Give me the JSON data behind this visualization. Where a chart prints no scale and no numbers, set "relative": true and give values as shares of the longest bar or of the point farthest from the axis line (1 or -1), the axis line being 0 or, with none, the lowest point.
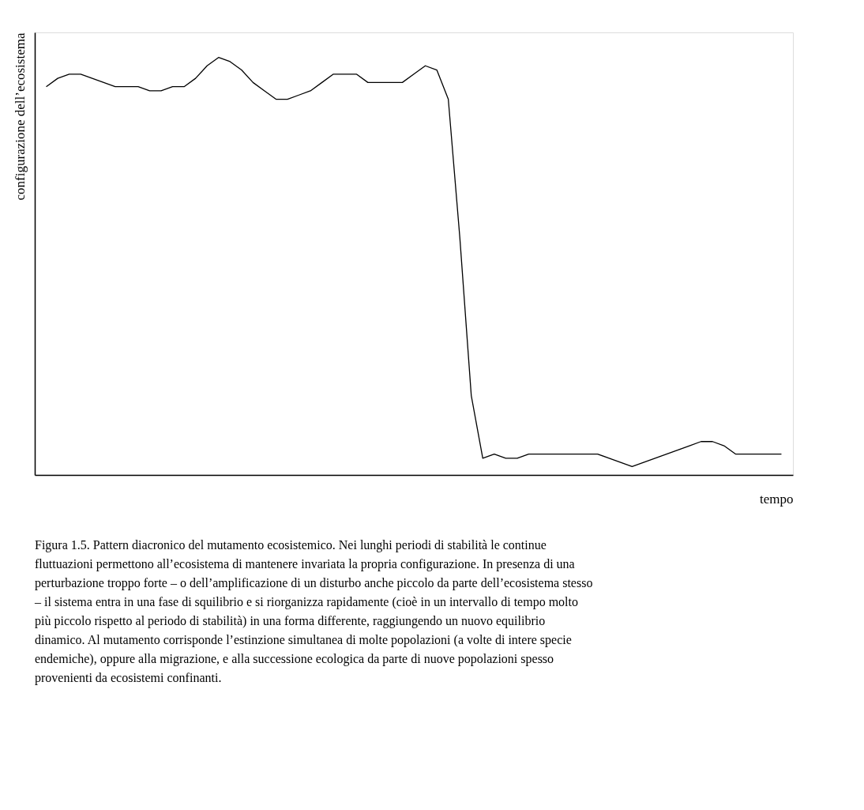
{
  "chart_data": {
    "type": "line",
    "relative": true,
    "xlabel": "tempo",
    "ylabel": "configurazione dell’ecosistema",
    "color": "#000000",
    "grid": false,
    "marker": "none",
    "line_style": "solid",
    "categories": [
      null,
      null,
      null,
      null,
      null,
      null,
      null,
      null,
      null,
      null,
      null,
      null,
      null,
      null,
      null,
      null,
      null,
      null,
      null,
      null,
      null,
      null,
      null,
      null,
      null,
      null,
      null,
      null,
      null,
      null,
      null,
      null,
      null,
      null,
      null,
      null,
      null,
      null,
      null,
      null,
      null,
      null,
      null,
      null,
      null,
      null,
      null,
      null,
      null,
      null,
      null,
      null,
      null,
      null,
      null,
      null,
      null,
      null,
      null,
      null,
      null,
      null,
      null,
      null,
      null
    ],
    "values": [
      0.93,
      0.95,
      0.96,
      0.96,
      0.95,
      0.94,
      0.93,
      0.93,
      0.93,
      0.92,
      0.92,
      0.93,
      0.93,
      0.95,
      0.98,
      1.0,
      0.99,
      0.97,
      0.94,
      0.92,
      0.9,
      0.9,
      0.91,
      0.92,
      0.94,
      0.96,
      0.96,
      0.96,
      0.94,
      0.94,
      0.94,
      0.94,
      0.96,
      0.98,
      0.97,
      0.9,
      0.57,
      0.19,
      0.04,
      0.05,
      0.04,
      0.04,
      0.05,
      0.05,
      0.05,
      0.05,
      0.05,
      0.05,
      0.05,
      0.04,
      0.03,
      0.02,
      0.03,
      0.04,
      0.05,
      0.06,
      0.07,
      0.08,
      0.08,
      0.07,
      0.05,
      0.05,
      0.05,
      0.05,
      0.05
    ],
    "annotations": [
      "Figura 1.5. Pattern diacronico del mutamento ecosistemico. Nei lunghi periodi di stabilità le continue fluttuazioni permettono all’ecosistema di mantenere invariata la propria configurazione. In presenza di una perturbazione troppo forte – o dell’amplificazione di un disturbo anche piccolo da parte dell’ecosistema stesso – il sistema entra in una fase di squilibrio e si riorganizza rapidamente (cioè in un intervallo di tempo molto più piccolo rispetto al periodo di stabilità) in una forma differente, raggiungendo un nuovo equilibrio dinamico. Al mutamento corrisponde l’estinzione simultanea di molte popolazioni (a volte di intere specie endemiche), oppure alla migrazione, e alla successione ecologica da parte di nuove popolazioni spesso provenienti da ecosistemi confinanti."
    ]
  }
}
